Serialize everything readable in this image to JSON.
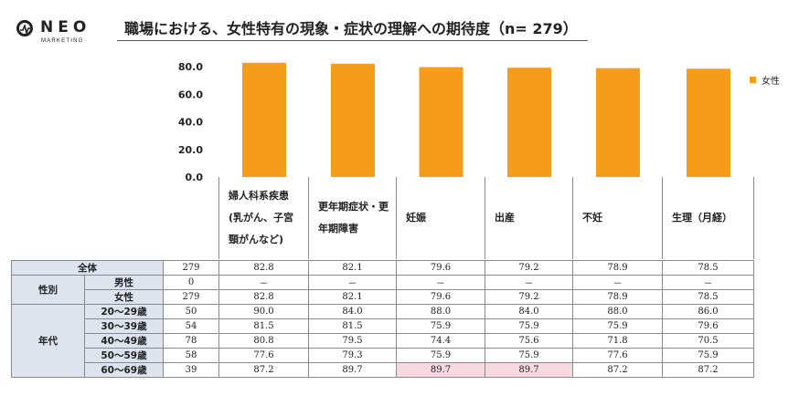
{
  "logo": {
    "brand": "NEO",
    "sub": "MARKETING"
  },
  "title": "職場における、女性特有の現象・症状の理解への期待度（n= 279）",
  "colors": {
    "bar": "#f59c1a",
    "label_bg": "#dde4ee",
    "highlight": "#f8d9e2"
  },
  "chart_data": {
    "type": "bar",
    "title": "職場における、女性特有の現象・症状の理解への期待度（n= 279）",
    "categories": [
      "婦人科系疾患\n(乳がん、子宮\n頸がんなど)",
      "更年期症状・更\n年期障害",
      "妊娠",
      "出産",
      "不妊",
      "生理（月経）"
    ],
    "series": [
      {
        "name": "女性",
        "values": [
          82.8,
          82.1,
          79.6,
          79.2,
          78.9,
          78.5
        ]
      }
    ],
    "yticks": [
      "80.0",
      "60.0",
      "40.0",
      "20.0",
      "0.0"
    ],
    "ylim": [
      0,
      80
    ],
    "legend": "right"
  },
  "table": {
    "rows": [
      {
        "group": "全体",
        "sub": "",
        "n": "279",
        "values": [
          "82.8",
          "82.1",
          "79.6",
          "79.2",
          "78.9",
          "78.5"
        ],
        "highlight": []
      },
      {
        "group": "性別",
        "sub": "男性",
        "n": "0",
        "values": [
          "－",
          "－",
          "－",
          "－",
          "－",
          "－"
        ],
        "highlight": []
      },
      {
        "group": "",
        "sub": "女性",
        "n": "279",
        "values": [
          "82.8",
          "82.1",
          "79.6",
          "79.2",
          "78.9",
          "78.5"
        ],
        "highlight": []
      },
      {
        "group": "年代",
        "sub": "20～29歳",
        "n": "50",
        "values": [
          "90.0",
          "84.0",
          "88.0",
          "84.0",
          "88.0",
          "86.0"
        ],
        "highlight": []
      },
      {
        "group": "",
        "sub": "30～39歳",
        "n": "54",
        "values": [
          "81.5",
          "81.5",
          "75.9",
          "75.9",
          "75.9",
          "79.6"
        ],
        "highlight": []
      },
      {
        "group": "",
        "sub": "40～49歳",
        "n": "78",
        "values": [
          "80.8",
          "79.5",
          "74.4",
          "75.6",
          "71.8",
          "70.5"
        ],
        "highlight": []
      },
      {
        "group": "",
        "sub": "50～59歳",
        "n": "58",
        "values": [
          "77.6",
          "79.3",
          "75.9",
          "75.9",
          "77.6",
          "75.9"
        ],
        "highlight": []
      },
      {
        "group": "",
        "sub": "60～69歳",
        "n": "39",
        "values": [
          "87.2",
          "89.7",
          "89.7",
          "89.7",
          "87.2",
          "87.2"
        ],
        "highlight": [
          2,
          3
        ]
      }
    ]
  }
}
